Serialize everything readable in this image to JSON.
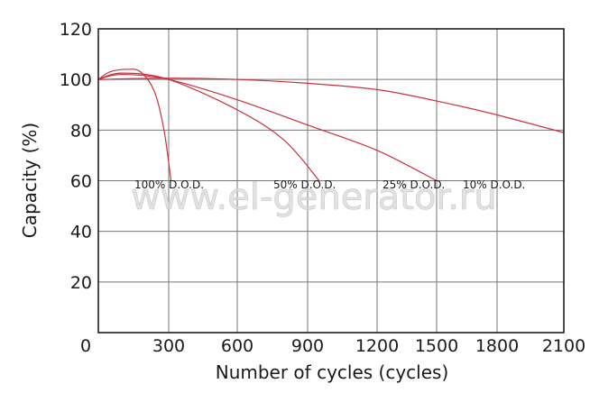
{
  "chart_data": {
    "type": "line",
    "title": "",
    "xlabel": "Number of cycles (cycles)",
    "ylabel": "Capacity (%)",
    "xlim": [
      0,
      2100
    ],
    "ylim": [
      0,
      120
    ],
    "x_ticks": [
      0,
      300,
      600,
      900,
      1200,
      1500,
      1800,
      2100
    ],
    "x_tick_labels": [
      "0",
      "300",
      "600",
      "900",
      "1200",
      "1500",
      "1800",
      "2100"
    ],
    "y_ticks": [
      20,
      40,
      60,
      80,
      100,
      120
    ],
    "y_tick_labels": [
      "20",
      "40",
      "60",
      "80",
      "100",
      "120"
    ],
    "grid": true,
    "line_color": "#c8323c",
    "watermark": "www.el-generator.ru",
    "series": [
      {
        "name": "100% D.O.D.",
        "label": "100% D.O.D.",
        "label_at": [
          300,
          57
        ],
        "points": [
          [
            0,
            100
          ],
          [
            50,
            103
          ],
          [
            120,
            104
          ],
          [
            180,
            103
          ],
          [
            240,
            95
          ],
          [
            280,
            80
          ],
          [
            310,
            60
          ]
        ]
      },
      {
        "name": "50% D.O.D.",
        "label": "50% D.O.D.",
        "label_at": [
          900,
          57
        ],
        "points": [
          [
            0,
            100
          ],
          [
            100,
            102.5
          ],
          [
            300,
            100
          ],
          [
            600,
            88
          ],
          [
            800,
            76
          ],
          [
            950,
            60
          ]
        ]
      },
      {
        "name": "25% D.O.D.",
        "label": "25% D.O.D.",
        "label_at": [
          1400,
          57
        ],
        "points": [
          [
            0,
            100
          ],
          [
            100,
            102
          ],
          [
            300,
            100
          ],
          [
            600,
            92
          ],
          [
            900,
            82
          ],
          [
            1200,
            72
          ],
          [
            1500,
            60
          ]
        ]
      },
      {
        "name": "10% D.O.D.",
        "label": "10% D.O.D.",
        "label_at": [
          1800,
          57
        ],
        "points": [
          [
            0,
            100
          ],
          [
            300,
            100.5
          ],
          [
            600,
            100
          ],
          [
            900,
            98.5
          ],
          [
            1200,
            96
          ],
          [
            1500,
            91.5
          ],
          [
            1800,
            86
          ],
          [
            2100,
            79
          ]
        ]
      }
    ]
  }
}
